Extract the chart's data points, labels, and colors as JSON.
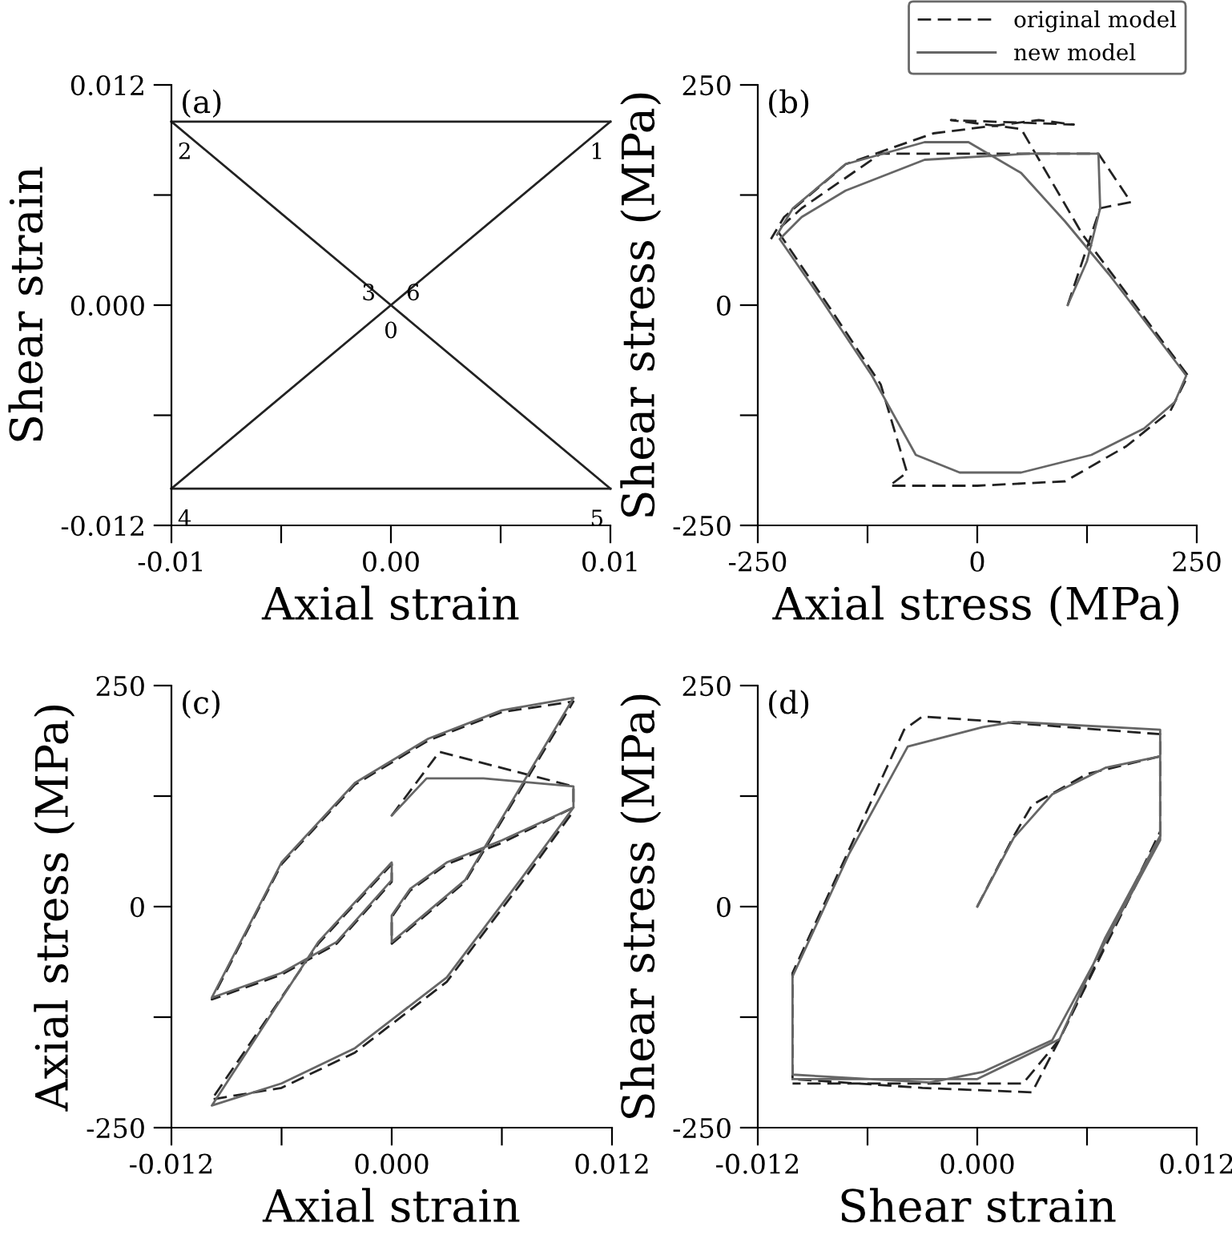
{
  "chart_data": [
    {
      "type": "line",
      "xlabel": "Axial strain",
      "ylabel": "Shear strain",
      "annotations": [
        "(a)",
        {
          "text": "0",
          "x": 0,
          "y": 0
        },
        {
          "text": "1",
          "x": 0.01,
          "y": 0.01
        },
        {
          "text": "2",
          "x": -0.01,
          "y": 0.01
        },
        {
          "text": "3",
          "x": 0,
          "y": 0
        },
        {
          "text": "4",
          "x": -0.01,
          "y": -0.01
        },
        {
          "text": "5",
          "x": 0.01,
          "y": -0.01
        },
        {
          "text": "6",
          "x": 0,
          "y": 0
        }
      ],
      "xlim": [
        -0.01,
        0.01
      ],
      "ylim": [
        -0.012,
        0.012
      ],
      "xticks": [
        {
          "value": -0.01,
          "label": "-0.01"
        },
        {
          "value": -0.005,
          "label": null
        },
        {
          "value": 0,
          "label": "0.00"
        },
        {
          "value": 0.005,
          "label": null
        },
        {
          "value": 0.01,
          "label": "0.01"
        }
      ],
      "yticks": [
        {
          "value": -0.012,
          "label": "-0.012"
        },
        {
          "value": -0.006,
          "label": null
        },
        {
          "value": 0,
          "label": "0.000"
        },
        {
          "value": 0.006,
          "label": null
        },
        {
          "value": 0.012,
          "label": "0.012"
        }
      ],
      "grid": false,
      "legend": false,
      "series": [
        {
          "color": "#222222",
          "line_style": "solid",
          "x": [
            -0.01,
            0,
            0.01
          ],
          "values": [
            -0.01,
            0,
            0.01
          ]
        },
        {
          "color": "#222222",
          "line_style": "solid",
          "x": [
            -0.01,
            0.01
          ],
          "values": [
            0.01,
            0.01
          ]
        },
        {
          "color": "#222222",
          "line_style": "solid",
          "x": [
            -0.01,
            0,
            0.01
          ],
          "values": [
            0.01,
            0,
            -0.01
          ]
        },
        {
          "color": "#222222",
          "line_style": "solid",
          "x": [
            -0.01,
            0.01
          ],
          "values": [
            -0.01,
            -0.01
          ]
        }
      ]
    },
    {
      "type": "line",
      "xlabel": "Axial stress (MPa)",
      "ylabel": "Shear stress (MPa)",
      "annotations": [
        "(b)"
      ],
      "xlim": [
        -250,
        250
      ],
      "ylim": [
        -250,
        250
      ],
      "xticks": [
        -250,
        {
          "value": -125,
          "label": null
        },
        0,
        {
          "value": 125,
          "label": null
        },
        250
      ],
      "yticks": [
        -250,
        {
          "value": -125,
          "label": null
        },
        0,
        {
          "value": 125,
          "label": null
        },
        250
      ],
      "grid": false,
      "legend": "top right",
      "series": [
        {
          "name": "original model",
          "color": "#222222",
          "line_style": "dashed",
          "x": [
            103,
            140,
            175,
            138,
            -110,
            -200,
            -228,
            -170,
            -110,
            -80,
            -100,
            0,
            100,
            170,
            220,
            240,
            180,
            120,
            50,
            -30,
            110,
            70,
            -50,
            -150,
            -220,
            -235
          ],
          "values": [
            0,
            110,
            117,
            172,
            172,
            110,
            85,
            0,
            -90,
            -190,
            -205,
            -205,
            -200,
            -160,
            -120,
            -80,
            0,
            80,
            200,
            210,
            205,
            210,
            195,
            160,
            100,
            75
          ]
        },
        {
          "name": "new model",
          "color": "#666666",
          "line_style": "solid",
          "x": [
            103,
            125,
            140,
            138,
            60,
            -60,
            -150,
            -200,
            -225,
            -180,
            -120,
            -70,
            -20,
            50,
            130,
            190,
            225,
            238,
            200,
            150,
            100,
            50,
            -10,
            -60,
            -150,
            -210,
            -228
          ],
          "values": [
            0,
            50,
            110,
            172,
            172,
            165,
            130,
            100,
            75,
            10,
            -80,
            -170,
            -190,
            -190,
            -170,
            -140,
            -110,
            -80,
            -30,
            35,
            95,
            150,
            185,
            185,
            160,
            110,
            80
          ]
        }
      ]
    },
    {
      "type": "line",
      "xlabel": "Axial strain",
      "ylabel": "Axial stress (MPa)",
      "annotations": [
        "(c)"
      ],
      "xlim": [
        -0.012,
        0.012
      ],
      "ylim": [
        -250,
        250
      ],
      "xticks": [
        {
          "value": -0.012,
          "label": "-0.012"
        },
        {
          "value": -0.006,
          "label": null
        },
        {
          "value": 0,
          "label": "0.000"
        },
        {
          "value": 0.006,
          "label": null
        },
        {
          "value": 0.012,
          "label": "0.012"
        }
      ],
      "yticks": [
        -250,
        {
          "value": -125,
          "label": null
        },
        0,
        {
          "value": 125,
          "label": null
        },
        250
      ],
      "grid": false,
      "legend": false,
      "series": [
        {
          "color": "#222222",
          "line_style": "dashed",
          "x": [
            0,
            0.0026,
            0.0099,
            0.0099,
            0.006,
            0.003,
            0.001,
            0,
            0,
            0.004,
            0.0099,
            0.006,
            0.002,
            -0.002,
            -0.006,
            -0.0098,
            -0.006,
            -0.003,
            0,
            0,
            -0.004,
            -0.0098,
            -0.006,
            -0.002,
            0.003,
            0.007,
            0.0099
          ],
          "values": [
            103,
            175,
            136,
            112,
            72,
            48,
            18,
            -12,
            -42,
            28,
            232,
            220,
            188,
            138,
            48,
            -105,
            -77,
            -42,
            28,
            48,
            -42,
            -218,
            -205,
            -165,
            -85,
            25,
            108
          ]
        },
        {
          "color": "#666666",
          "line_style": "solid",
          "x": [
            0,
            0.0019,
            0.005,
            0.0099,
            0.0099,
            0.006,
            0.003,
            0.001,
            0,
            0,
            0.004,
            0.0099,
            0.006,
            0.002,
            -0.002,
            -0.006,
            -0.0098,
            -0.006,
            -0.003,
            0,
            0,
            -0.004,
            -0.0098,
            -0.006,
            -0.002,
            0.003,
            0.007,
            0.0099
          ],
          "values": [
            103,
            145,
            145,
            136,
            112,
            75,
            50,
            20,
            -10,
            -40,
            30,
            236,
            222,
            190,
            140,
            50,
            -103,
            -75,
            -40,
            30,
            50,
            -40,
            -225,
            -200,
            -160,
            -80,
            30,
            112
          ]
        }
      ]
    },
    {
      "type": "line",
      "xlabel": "Shear strain",
      "ylabel": "Shear stress (MPa)",
      "annotations": [
        "(d)"
      ],
      "xlim": [
        -0.012,
        0.012
      ],
      "ylim": [
        -250,
        250
      ],
      "xticks": [
        {
          "value": -0.012,
          "label": "-0.012"
        },
        {
          "value": -0.006,
          "label": null
        },
        {
          "value": 0,
          "label": "0.000"
        },
        {
          "value": 0.006,
          "label": null
        },
        {
          "value": 0.012,
          "label": "0.012"
        }
      ],
      "yticks": [
        -250,
        {
          "value": -125,
          "label": null
        },
        0,
        {
          "value": 125,
          "label": null
        },
        250
      ],
      "grid": false,
      "legend": false,
      "series": [
        {
          "color": "#222222",
          "line_style": "dashed",
          "x": [
            0,
            0.002,
            0.003,
            0.006,
            0.01,
            0.01,
            0.0045,
            0.003,
            -0.003,
            -0.0101,
            -0.0101,
            -0.004,
            -0.003,
            0.0005,
            0.01,
            0.01,
            0.0045,
            0.0025,
            -0.0101
          ],
          "values": [
            0,
            80,
            115,
            150,
            170,
            80,
            -150,
            -210,
            -205,
            -195,
            -75,
            200,
            215,
            210,
            195,
            85,
            -150,
            -200,
            -200
          ]
        },
        {
          "color": "#666666",
          "line_style": "solid",
          "x": [
            0,
            0.002,
            0.0041,
            0.007,
            0.01,
            0.01,
            0.007,
            0.0041,
            0.0003,
            -0.0026,
            -0.0101,
            -0.0101,
            -0.007,
            -0.0038,
            0.0003,
            0.002,
            0.01,
            0.01,
            0.007,
            0.0045,
            0,
            -0.0101
          ],
          "values": [
            0,
            78,
            127,
            157,
            170,
            75,
            -40,
            -151,
            -187,
            -199,
            -190,
            -79,
            60,
            181,
            203,
            209,
            200,
            80,
            -35,
            -150,
            -195,
            -195
          ]
        }
      ]
    }
  ]
}
